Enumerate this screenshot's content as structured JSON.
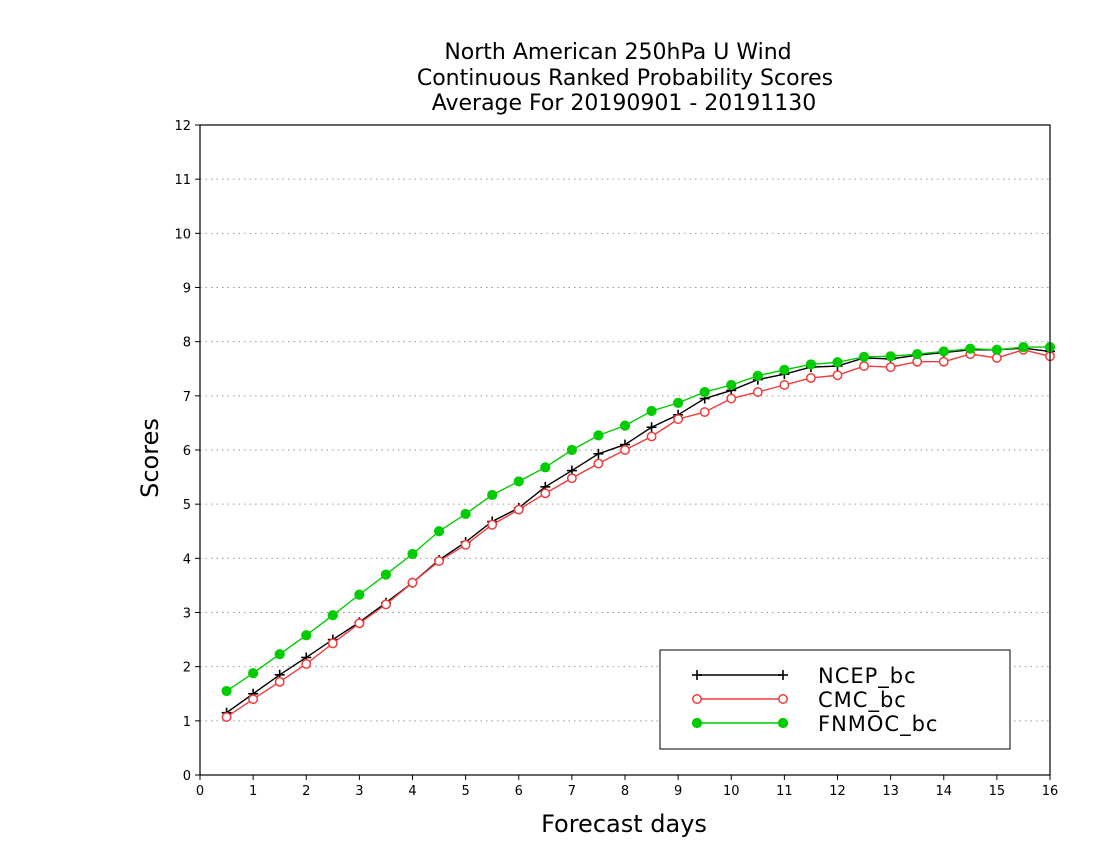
{
  "chart_data": {
    "type": "line",
    "title_lines": [
      "North American 250hPa U Wind",
      "Continuous Ranked Probability Scores",
      "Average For 20190901 - 20191130"
    ],
    "xlabel": "Forecast days",
    "ylabel": "Scores",
    "xlim": [
      0,
      16
    ],
    "ylim": [
      0,
      12
    ],
    "x_ticks": [
      "0",
      "1",
      "2",
      "3",
      "4",
      "5",
      "6",
      "7",
      "8",
      "9",
      "10",
      "11",
      "12",
      "13",
      "14",
      "15",
      "16"
    ],
    "y_ticks": [
      "0",
      "1",
      "2",
      "3",
      "4",
      "5",
      "6",
      "7",
      "8",
      "9",
      "10",
      "11",
      "12"
    ],
    "grid": "horizontal dotted",
    "legend_position": "bottom-right",
    "x": [
      0.5,
      1,
      1.5,
      2,
      2.5,
      3,
      3.5,
      4,
      4.5,
      5,
      5.5,
      6,
      6.5,
      7,
      7.5,
      8,
      8.5,
      9,
      9.5,
      10,
      10.5,
      11,
      11.5,
      12,
      12.5,
      13,
      13.5,
      14,
      14.5,
      15,
      15.5,
      16
    ],
    "series": [
      {
        "name": "NCEP_bc",
        "color": "#000000",
        "marker": "plus",
        "values": [
          1.15,
          1.5,
          1.85,
          2.17,
          2.5,
          2.82,
          3.18,
          3.55,
          3.97,
          4.3,
          4.68,
          4.93,
          5.32,
          5.62,
          5.93,
          6.1,
          6.42,
          6.65,
          6.95,
          7.1,
          7.3,
          7.4,
          7.53,
          7.55,
          7.7,
          7.68,
          7.75,
          7.8,
          7.85,
          7.85,
          7.88,
          7.82
        ]
      },
      {
        "name": "CMC_bc",
        "color": "#ee3b3b",
        "marker": "open-circle",
        "values": [
          1.07,
          1.4,
          1.72,
          2.05,
          2.43,
          2.8,
          3.15,
          3.55,
          3.95,
          4.25,
          4.62,
          4.9,
          5.2,
          5.48,
          5.75,
          6.0,
          6.25,
          6.57,
          6.7,
          6.95,
          7.07,
          7.2,
          7.33,
          7.38,
          7.55,
          7.53,
          7.63,
          7.63,
          7.77,
          7.7,
          7.85,
          7.73
        ]
      },
      {
        "name": "FNMOC_bc",
        "color": "#00cc00",
        "marker": "filled-circle",
        "values": [
          1.55,
          1.88,
          2.23,
          2.58,
          2.95,
          3.33,
          3.7,
          4.08,
          4.5,
          4.82,
          5.17,
          5.42,
          5.68,
          6.0,
          6.27,
          6.45,
          6.72,
          6.87,
          7.07,
          7.2,
          7.37,
          7.48,
          7.58,
          7.62,
          7.72,
          7.73,
          7.77,
          7.82,
          7.87,
          7.85,
          7.9,
          7.9
        ]
      }
    ]
  }
}
